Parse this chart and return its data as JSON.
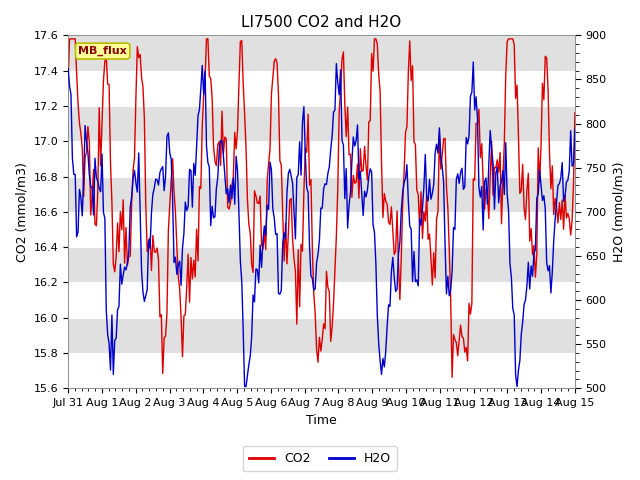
{
  "title": "LI7500 CO2 and H2O",
  "xlabel": "Time",
  "ylabel_left": "CO2 (mmol/m3)",
  "ylabel_right": "H2O (mmol/m3)",
  "co2_ylim": [
    15.6,
    17.6
  ],
  "h2o_ylim": [
    500,
    900
  ],
  "co2_color": "#dd0000",
  "h2o_color": "#0000cc",
  "fig_bg_color": "#ffffff",
  "plot_bg_color": "#ffffff",
  "band_color": "#e0e0e0",
  "annotation_text": "MB_flux",
  "annotation_bg": "#ffff99",
  "annotation_border": "#bbbb00",
  "x_tick_labels": [
    "Jul 31",
    "Aug 1",
    "Aug 2",
    "Aug 3",
    "Aug 4",
    "Aug 5",
    "Aug 6",
    "Aug 7",
    "Aug 8",
    "Aug 9",
    "Aug 10",
    "Aug 11",
    "Aug 12",
    "Aug 13",
    "Aug 14",
    "Aug 15"
  ],
  "co2_yticks": [
    15.6,
    15.8,
    16.0,
    16.2,
    16.4,
    16.6,
    16.8,
    17.0,
    17.2,
    17.4,
    17.6
  ],
  "h2o_yticks": [
    500,
    550,
    600,
    650,
    700,
    750,
    800,
    850,
    900
  ],
  "title_fontsize": 11,
  "label_fontsize": 9,
  "tick_fontsize": 8,
  "legend_fontsize": 9,
  "line_width": 1.0,
  "n_days": 15,
  "n_points": 360
}
